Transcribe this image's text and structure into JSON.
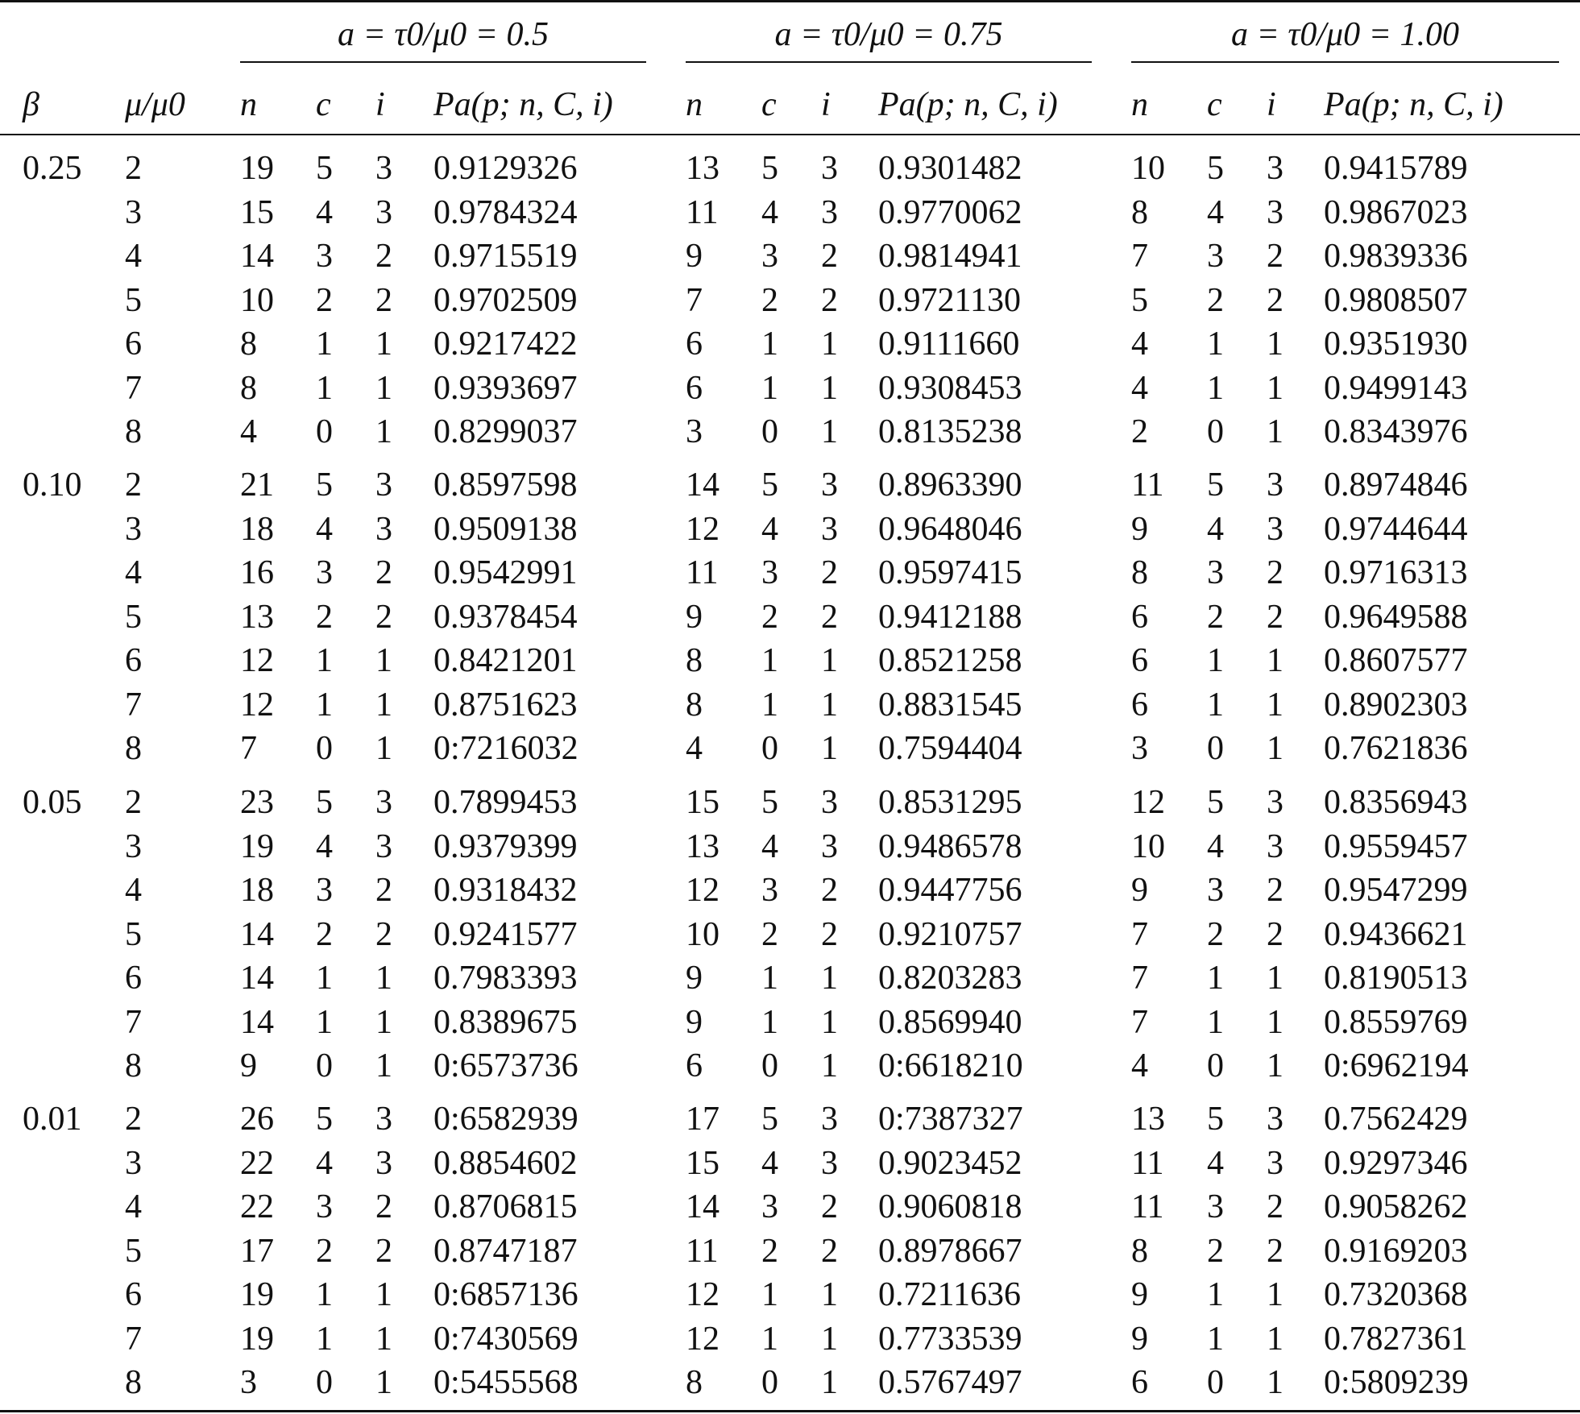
{
  "groups": [
    {
      "title": "a = τ0/μ0 = 0.5"
    },
    {
      "title": "a = τ0/μ0 = 0.75"
    },
    {
      "title": "a = τ0/μ0 = 1.00"
    }
  ],
  "headers": {
    "beta": "β",
    "mu": "μ/μ0",
    "n": "n",
    "c": "c",
    "i": "i",
    "pa": "Pa(p; n, C, i)"
  },
  "blocks": [
    {
      "beta": "0.25",
      "rows": [
        {
          "mu": "2",
          "g": [
            [
              "19",
              "5",
              "3",
              "0.9129326"
            ],
            [
              "13",
              "5",
              "3",
              "0.9301482"
            ],
            [
              "10",
              "5",
              "3",
              "0.9415789"
            ]
          ]
        },
        {
          "mu": "3",
          "g": [
            [
              "15",
              "4",
              "3",
              "0.9784324"
            ],
            [
              "11",
              "4",
              "3",
              "0.9770062"
            ],
            [
              "8",
              "4",
              "3",
              "0.9867023"
            ]
          ]
        },
        {
          "mu": "4",
          "g": [
            [
              "14",
              "3",
              "2",
              "0.9715519"
            ],
            [
              "9",
              "3",
              "2",
              "0.9814941"
            ],
            [
              "7",
              "3",
              "2",
              "0.9839336"
            ]
          ]
        },
        {
          "mu": "5",
          "g": [
            [
              "10",
              "2",
              "2",
              "0.9702509"
            ],
            [
              "7",
              "2",
              "2",
              "0.9721130"
            ],
            [
              "5",
              "2",
              "2",
              "0.9808507"
            ]
          ]
        },
        {
          "mu": "6",
          "g": [
            [
              "8",
              "1",
              "1",
              "0.9217422"
            ],
            [
              "6",
              "1",
              "1",
              "0.9111660"
            ],
            [
              "4",
              "1",
              "1",
              "0.9351930"
            ]
          ]
        },
        {
          "mu": "7",
          "g": [
            [
              "8",
              "1",
              "1",
              "0.9393697"
            ],
            [
              "6",
              "1",
              "1",
              "0.9308453"
            ],
            [
              "4",
              "1",
              "1",
              "0.9499143"
            ]
          ]
        },
        {
          "mu": "8",
          "g": [
            [
              "4",
              "0",
              "1",
              "0.8299037"
            ],
            [
              "3",
              "0",
              "1",
              "0.8135238"
            ],
            [
              "2",
              "0",
              "1",
              "0.8343976"
            ]
          ]
        }
      ]
    },
    {
      "beta": "0.10",
      "rows": [
        {
          "mu": "2",
          "g": [
            [
              "21",
              "5",
              "3",
              "0.8597598"
            ],
            [
              "14",
              "5",
              "3",
              "0.8963390"
            ],
            [
              "11",
              "5",
              "3",
              "0.8974846"
            ]
          ]
        },
        {
          "mu": "3",
          "g": [
            [
              "18",
              "4",
              "3",
              "0.9509138"
            ],
            [
              "12",
              "4",
              "3",
              "0.9648046"
            ],
            [
              "9",
              "4",
              "3",
              "0.9744644"
            ]
          ]
        },
        {
          "mu": "4",
          "g": [
            [
              "16",
              "3",
              "2",
              "0.9542991"
            ],
            [
              "11",
              "3",
              "2",
              "0.9597415"
            ],
            [
              "8",
              "3",
              "2",
              "0.9716313"
            ]
          ]
        },
        {
          "mu": "5",
          "g": [
            [
              "13",
              "2",
              "2",
              "0.9378454"
            ],
            [
              "9",
              "2",
              "2",
              "0.9412188"
            ],
            [
              "6",
              "2",
              "2",
              "0.9649588"
            ]
          ]
        },
        {
          "mu": "6",
          "g": [
            [
              "12",
              "1",
              "1",
              "0.8421201"
            ],
            [
              "8",
              "1",
              "1",
              "0.8521258"
            ],
            [
              "6",
              "1",
              "1",
              "0.8607577"
            ]
          ]
        },
        {
          "mu": "7",
          "g": [
            [
              "12",
              "1",
              "1",
              "0.8751623"
            ],
            [
              "8",
              "1",
              "1",
              "0.8831545"
            ],
            [
              "6",
              "1",
              "1",
              "0.8902303"
            ]
          ]
        },
        {
          "mu": "8",
          "g": [
            [
              "7",
              "0",
              "1",
              "0:7216032"
            ],
            [
              "4",
              "0",
              "1",
              "0.7594404"
            ],
            [
              "3",
              "0",
              "1",
              "0.7621836"
            ]
          ]
        }
      ]
    },
    {
      "beta": "0.05",
      "rows": [
        {
          "mu": "2",
          "g": [
            [
              "23",
              "5",
              "3",
              "0.7899453"
            ],
            [
              "15",
              "5",
              "3",
              "0.8531295"
            ],
            [
              "12",
              "5",
              "3",
              "0.8356943"
            ]
          ]
        },
        {
          "mu": "3",
          "g": [
            [
              "19",
              "4",
              "3",
              "0.9379399"
            ],
            [
              "13",
              "4",
              "3",
              "0.9486578"
            ],
            [
              "10",
              "4",
              "3",
              "0.9559457"
            ]
          ]
        },
        {
          "mu": "4",
          "g": [
            [
              "18",
              "3",
              "2",
              "0.9318432"
            ],
            [
              "12",
              "3",
              "2",
              "0.9447756"
            ],
            [
              "9",
              "3",
              "2",
              "0.9547299"
            ]
          ]
        },
        {
          "mu": "5",
          "g": [
            [
              "14",
              "2",
              "2",
              "0.9241577"
            ],
            [
              "10",
              "2",
              "2",
              "0.9210757"
            ],
            [
              "7",
              "2",
              "2",
              "0.9436621"
            ]
          ]
        },
        {
          "mu": "6",
          "g": [
            [
              "14",
              "1",
              "1",
              "0.7983393"
            ],
            [
              "9",
              "1",
              "1",
              "0.8203283"
            ],
            [
              "7",
              "1",
              "1",
              "0.8190513"
            ]
          ]
        },
        {
          "mu": "7",
          "g": [
            [
              "14",
              "1",
              "1",
              "0.8389675"
            ],
            [
              "9",
              "1",
              "1",
              "0.8569940"
            ],
            [
              "7",
              "1",
              "1",
              "0.8559769"
            ]
          ]
        },
        {
          "mu": "8",
          "g": [
            [
              "9",
              "0",
              "1",
              "0:6573736"
            ],
            [
              "6",
              "0",
              "1",
              "0:6618210"
            ],
            [
              "4",
              "0",
              "1",
              "0:6962194"
            ]
          ]
        }
      ]
    },
    {
      "beta": "0.01",
      "rows": [
        {
          "mu": "2",
          "g": [
            [
              "26",
              "5",
              "3",
              "0:6582939"
            ],
            [
              "17",
              "5",
              "3",
              "0:7387327"
            ],
            [
              "13",
              "5",
              "3",
              "0.7562429"
            ]
          ]
        },
        {
          "mu": "3",
          "g": [
            [
              "22",
              "4",
              "3",
              "0.8854602"
            ],
            [
              "15",
              "4",
              "3",
              "0.9023452"
            ],
            [
              "11",
              "4",
              "3",
              "0.9297346"
            ]
          ]
        },
        {
          "mu": "4",
          "g": [
            [
              "22",
              "3",
              "2",
              "0.8706815"
            ],
            [
              "14",
              "3",
              "2",
              "0.9060818"
            ],
            [
              "11",
              "3",
              "2",
              "0.9058262"
            ]
          ]
        },
        {
          "mu": "5",
          "g": [
            [
              "17",
              "2",
              "2",
              "0.8747187"
            ],
            [
              "11",
              "2",
              "2",
              "0.8978667"
            ],
            [
              "8",
              "2",
              "2",
              "0.9169203"
            ]
          ]
        },
        {
          "mu": "6",
          "g": [
            [
              "19",
              "1",
              "1",
              "0:6857136"
            ],
            [
              "12",
              "1",
              "1",
              "0.7211636"
            ],
            [
              "9",
              "1",
              "1",
              "0.7320368"
            ]
          ]
        },
        {
          "mu": "7",
          "g": [
            [
              "19",
              "1",
              "1",
              "0:7430569"
            ],
            [
              "12",
              "1",
              "1",
              "0.7733539"
            ],
            [
              "9",
              "1",
              "1",
              "0.7827361"
            ]
          ]
        },
        {
          "mu": "8",
          "g": [
            [
              "3",
              "0",
              "1",
              "0:5455568"
            ],
            [
              "8",
              "0",
              "1",
              "0.5767497"
            ],
            [
              "6",
              "0",
              "1",
              "0:5809239"
            ]
          ]
        }
      ]
    }
  ]
}
